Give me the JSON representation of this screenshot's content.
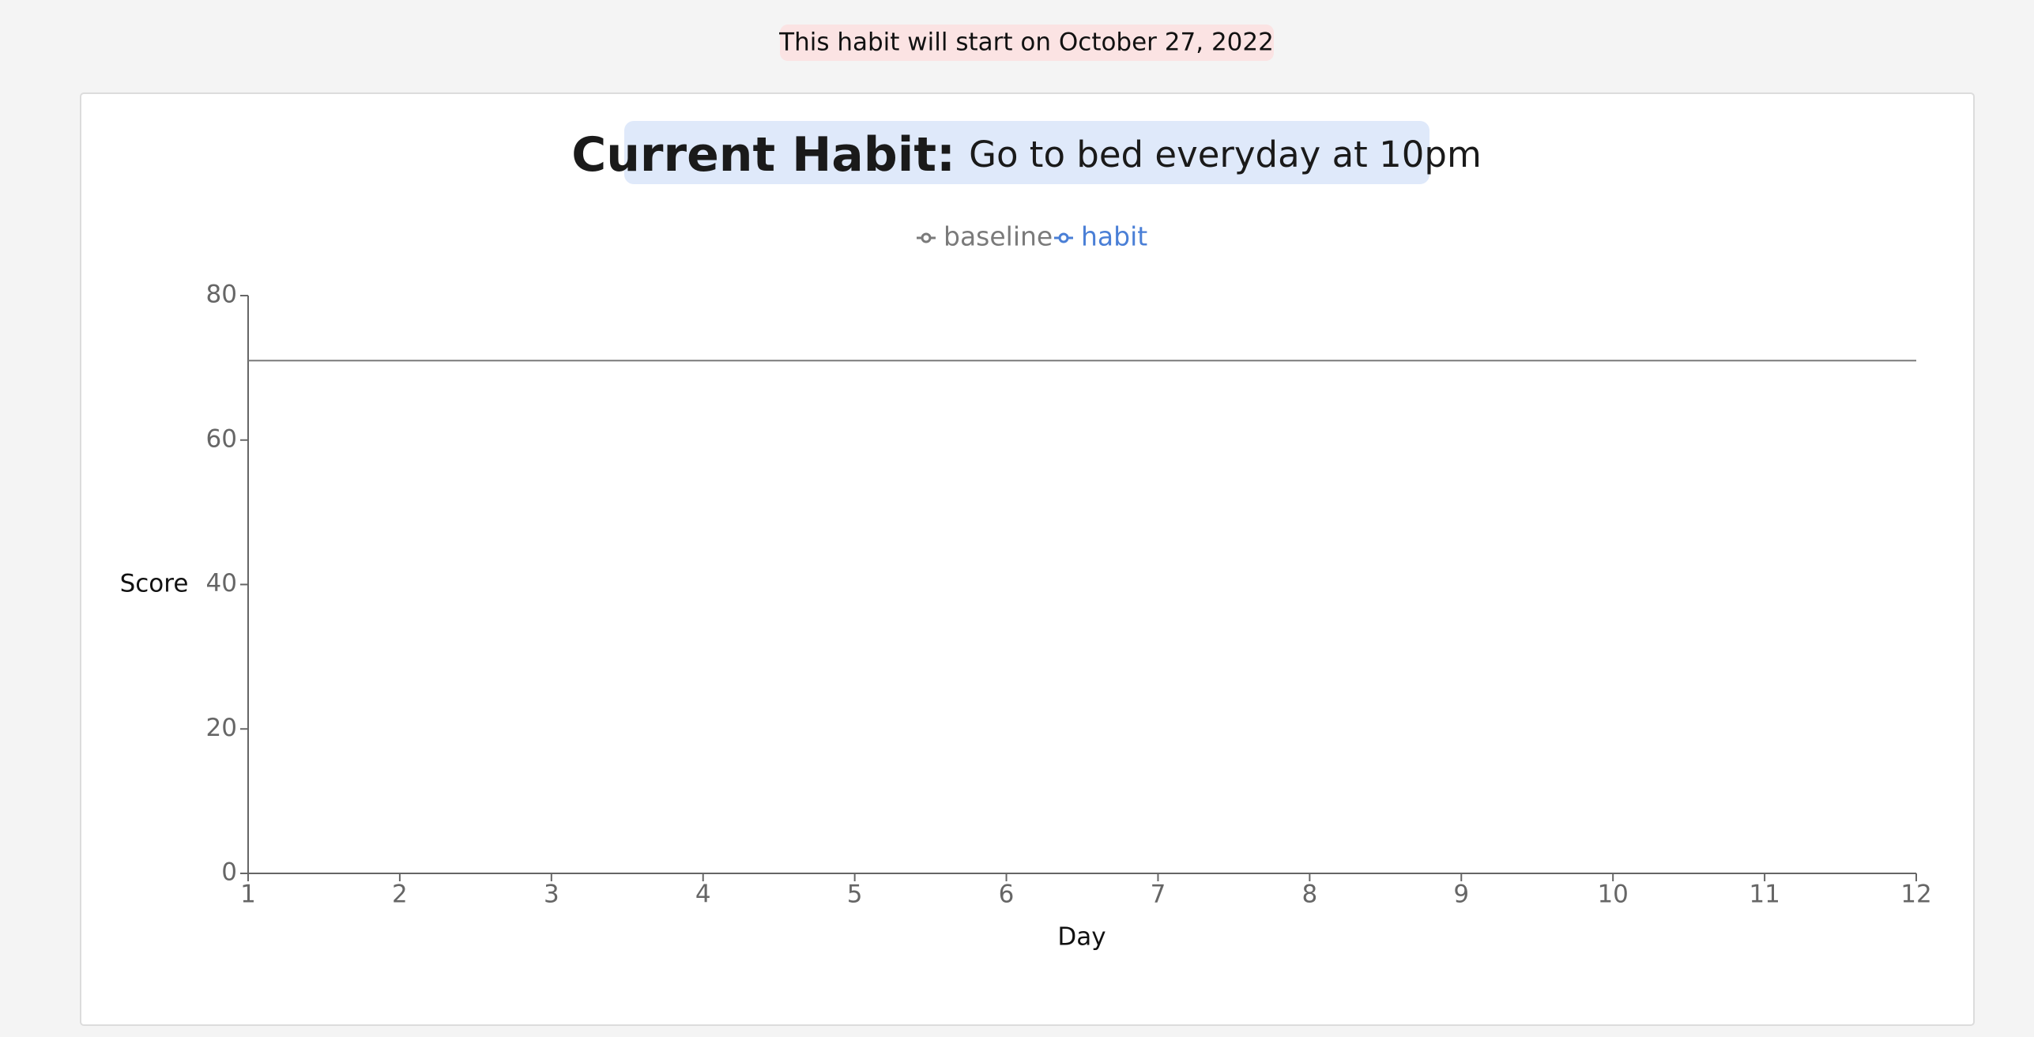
{
  "banner": "This habit will start on October 27, 2022",
  "chart_data": {
    "type": "line",
    "title": "Current Habit:",
    "subtitle": "Go to bed everyday at 10pm",
    "xlabel": "Day",
    "ylabel": "Score",
    "x": [
      1,
      2,
      3,
      4,
      5,
      6,
      7,
      8,
      9,
      10,
      11,
      12
    ],
    "series": [
      {
        "name": "baseline",
        "color": "#7a7a7a",
        "values": [
          71,
          71,
          71,
          71,
          71,
          71,
          71,
          71,
          71,
          71,
          71,
          71
        ]
      },
      {
        "name": "habit",
        "color": "#4a7fd6",
        "values": [
          null,
          null,
          null,
          null,
          null,
          null,
          null,
          null,
          null,
          null,
          null,
          null
        ]
      }
    ],
    "xlim": [
      1,
      12
    ],
    "xticks": [
      1,
      2,
      3,
      4,
      5,
      6,
      7,
      8,
      9,
      10,
      11,
      12
    ],
    "ylim": [
      0,
      80
    ],
    "yticks": [
      0,
      20,
      40,
      60,
      80
    ]
  }
}
